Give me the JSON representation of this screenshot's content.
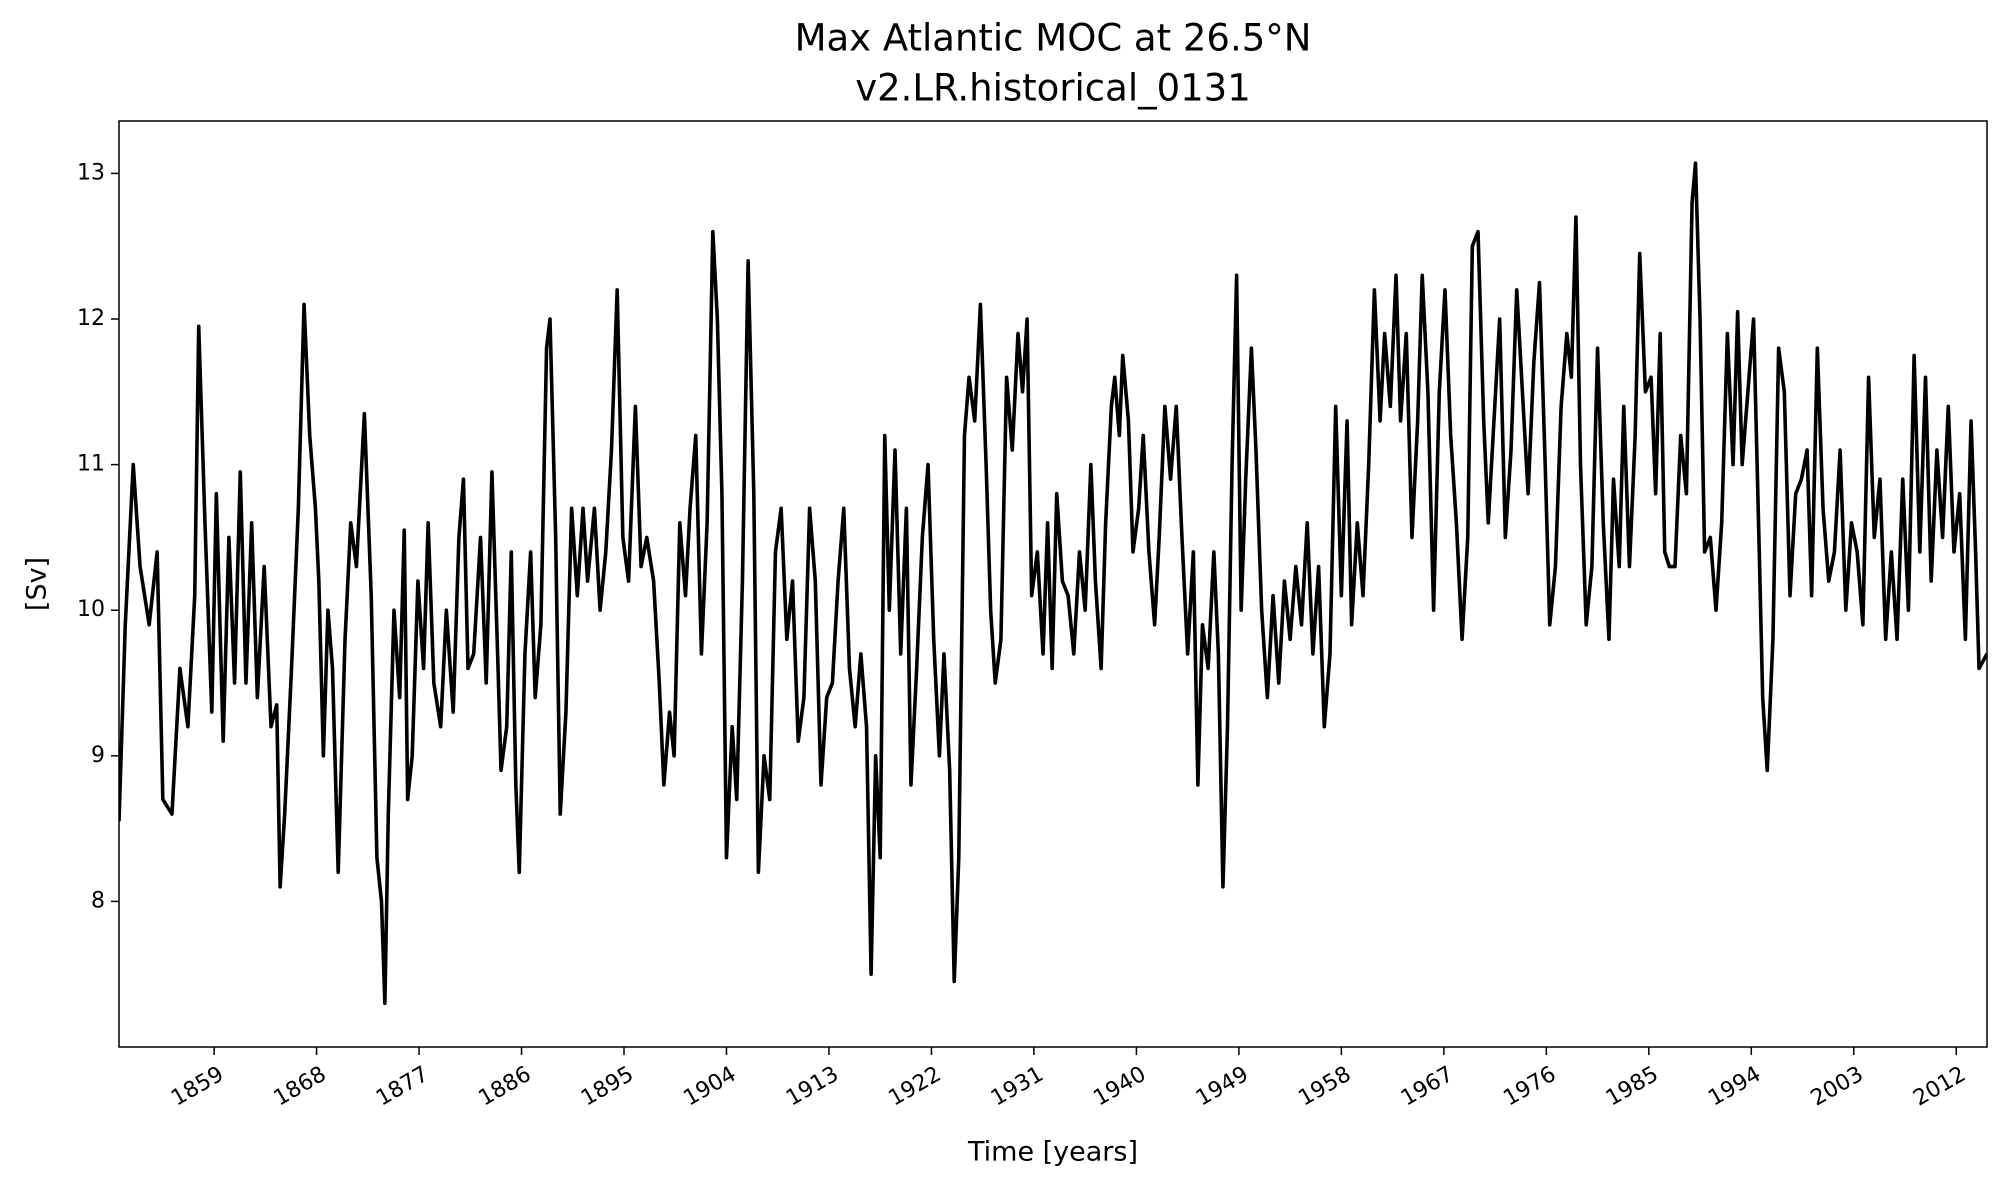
{
  "chart_data": {
    "type": "line",
    "title": "Max Atlantic MOC at 26.5°N",
    "subtitle": "v2.LR.historical_0131",
    "xlabel": "Time [years]",
    "ylabel": "[Sv]",
    "color": "#000000",
    "xlim": [
      1850.65,
      2014.7
    ],
    "ylim": [
      7.0,
      13.36
    ],
    "xticks": [
      1859,
      1868,
      1877,
      1886,
      1895,
      1904,
      1913,
      1922,
      1931,
      1940,
      1949,
      1958,
      1967,
      1976,
      1985,
      1994,
      2003,
      2012
    ],
    "yticks": [
      8,
      9,
      10,
      11,
      12,
      13
    ],
    "grid": false,
    "x": [
      1850.65,
      1851.2,
      1851.9,
      1852.5,
      1853.3,
      1854.0,
      1854.5,
      1855.3,
      1856.0,
      1856.7,
      1857.3,
      1857.65,
      1858.2,
      1858.8,
      1859.2,
      1859.8,
      1860.3,
      1860.8,
      1861.3,
      1861.8,
      1862.3,
      1862.8,
      1863.4,
      1864.0,
      1864.5,
      1864.8,
      1865.2,
      1865.8,
      1866.4,
      1866.9,
      1867.4,
      1867.9,
      1868.2,
      1868.6,
      1869.0,
      1869.4,
      1869.9,
      1870.5,
      1871.0,
      1871.5,
      1872.2,
      1872.8,
      1873.3,
      1873.7,
      1874.0,
      1874.3,
      1874.8,
      1875.3,
      1875.7,
      1876.0,
      1876.4,
      1876.9,
      1877.4,
      1877.8,
      1878.3,
      1878.9,
      1879.4,
      1880.0,
      1880.5,
      1880.9,
      1881.3,
      1881.8,
      1882.4,
      1882.9,
      1883.4,
      1883.9,
      1884.2,
      1884.7,
      1885.1,
      1885.5,
      1885.8,
      1886.3,
      1886.8,
      1887.2,
      1887.7,
      1888.2,
      1888.5,
      1889.0,
      1889.4,
      1889.9,
      1890.4,
      1890.9,
      1891.4,
      1891.8,
      1892.4,
      1892.9,
      1893.4,
      1893.9,
      1894.4,
      1894.9,
      1895.4,
      1896.0,
      1896.5,
      1897.0,
      1897.6,
      1898.1,
      1898.5,
      1899.0,
      1899.4,
      1899.9,
      1900.4,
      1900.8,
      1901.3,
      1901.8,
      1902.3,
      1902.8,
      1903.2,
      1903.6,
      1904.0,
      1904.5,
      1904.9,
      1905.4,
      1905.9,
      1906.4,
      1906.8,
      1907.3,
      1907.8,
      1908.3,
      1908.8,
      1909.3,
      1909.8,
      1910.3,
      1910.8,
      1911.3,
      1911.8,
      1912.3,
      1912.8,
      1913.3,
      1913.8,
      1914.3,
      1914.8,
      1915.3,
      1915.8,
      1916.3,
      1916.7,
      1917.1,
      1917.5,
      1917.9,
      1918.3,
      1918.8,
      1919.3,
      1919.8,
      1920.2,
      1920.7,
      1921.2,
      1921.7,
      1922.2,
      1922.7,
      1923.1,
      1923.6,
      1924.0,
      1924.4,
      1924.9,
      1925.3,
      1925.8,
      1926.3,
      1926.8,
      1927.2,
      1927.6,
      1928.1,
      1928.6,
      1929.1,
      1929.6,
      1930.0,
      1930.4,
      1930.8,
      1931.3,
      1931.8,
      1932.2,
      1932.6,
      1933.0,
      1933.5,
      1934.0,
      1934.5,
      1935.0,
      1935.5,
      1936.0,
      1936.4,
      1936.9,
      1937.3,
      1937.8,
      1938.1,
      1938.5,
      1938.8,
      1939.3,
      1939.7,
      1940.2,
      1940.6,
      1941.1,
      1941.6,
      1942.0,
      1942.5,
      1943.0,
      1943.5,
      1944.0,
      1944.5,
      1945.0,
      1945.4,
      1945.8,
      1946.3,
      1946.8,
      1947.2,
      1947.6,
      1948.0,
      1948.4,
      1948.8,
      1949.2,
      1949.6,
      1950.1,
      1950.5,
      1951.0,
      1951.5,
      1952.0,
      1952.5,
      1953.0,
      1953.5,
      1954.0,
      1954.5,
      1955.0,
      1955.5,
      1956.0,
      1956.5,
      1957.0,
      1957.5,
      1958.0,
      1958.5,
      1958.9,
      1959.4,
      1959.9,
      1960.4,
      1960.9,
      1961.4,
      1961.8,
      1962.3,
      1962.8,
      1963.2,
      1963.7,
      1964.2,
      1964.7,
      1965.1,
      1965.6,
      1966.1,
      1966.6,
      1967.1,
      1967.6,
      1968.1,
      1968.6,
      1969.1,
      1969.5,
      1970.0,
      1970.5,
      1970.9,
      1971.4,
      1971.9,
      1972.4,
      1972.9,
      1973.4,
      1973.9,
      1974.4,
      1974.9,
      1975.4,
      1975.9,
      1976.3,
      1976.8,
      1977.3,
      1977.8,
      1978.2,
      1978.6,
      1979.0,
      1979.5,
      1980.0,
      1980.5,
      1981.0,
      1981.5,
      1981.9,
      1982.4,
      1982.8,
      1983.3,
      1983.8,
      1984.2,
      1984.7,
      1985.2,
      1985.6,
      1986.0,
      1986.4,
      1986.8,
      1987.3,
      1987.8,
      1988.3,
      1988.8,
      1989.1,
      1989.5,
      1989.9,
      1990.4,
      1990.9,
      1991.4,
      1991.9,
      1992.4,
      1992.8,
      1993.2,
      1993.7,
      1994.2,
      1994.7,
      1995.0,
      1995.4,
      1995.9,
      1996.4,
      1996.9,
      1997.4,
      1997.9,
      1998.4,
      1998.9,
      1999.3,
      1999.8,
      2000.3,
      2000.8,
      2001.3,
      2001.8,
      2002.3,
      2002.8,
      2003.3,
      2003.8,
      2004.3,
      2004.8,
      2005.3,
      2005.8,
      2006.3,
      2006.8,
      2007.3,
      2007.8,
      2008.3,
      2008.8,
      2009.3,
      2009.8,
      2010.3,
      2010.8,
      2011.3,
      2011.8,
      2012.3,
      2012.8,
      2013.3,
      2013.7,
      2014.0,
      2014.7
    ],
    "values": [
      8.55,
      9.9,
      11.0,
      10.3,
      9.9,
      10.4,
      8.7,
      8.6,
      9.6,
      9.2,
      10.1,
      11.95,
      10.6,
      9.3,
      10.8,
      9.1,
      10.5,
      9.5,
      10.95,
      9.5,
      10.6,
      9.4,
      10.3,
      9.2,
      9.35,
      8.1,
      8.6,
      9.6,
      10.7,
      12.1,
      11.2,
      10.7,
      10.2,
      9.0,
      10.0,
      9.6,
      8.2,
      9.8,
      10.6,
      10.3,
      11.35,
      10.1,
      8.3,
      8.0,
      7.3,
      8.6,
      10.0,
      9.4,
      10.55,
      8.7,
      9.0,
      10.2,
      9.6,
      10.6,
      9.5,
      9.2,
      10.0,
      9.3,
      10.5,
      10.9,
      9.6,
      9.7,
      10.5,
      9.5,
      10.95,
      9.7,
      8.9,
      9.2,
      10.4,
      8.8,
      8.2,
      9.7,
      10.4,
      9.4,
      9.9,
      11.8,
      12.0,
      10.5,
      8.6,
      9.3,
      10.7,
      10.1,
      10.7,
      10.2,
      10.7,
      10.0,
      10.4,
      11.1,
      12.2,
      10.5,
      10.2,
      11.4,
      10.3,
      10.5,
      10.2,
      9.5,
      8.8,
      9.3,
      9.0,
      10.6,
      10.1,
      10.7,
      11.2,
      9.7,
      10.6,
      12.6,
      12.0,
      10.8,
      8.3,
      9.2,
      8.7,
      10.2,
      12.4,
      10.8,
      8.2,
      9.0,
      8.7,
      10.4,
      10.7,
      9.8,
      10.2,
      9.1,
      9.4,
      10.7,
      10.2,
      8.8,
      9.4,
      9.5,
      10.2,
      10.7,
      9.6,
      9.2,
      9.7,
      9.2,
      7.5,
      9.0,
      8.3,
      11.2,
      10.0,
      11.1,
      9.7,
      10.7,
      8.8,
      9.6,
      10.5,
      11.0,
      9.8,
      9.0,
      9.7,
      8.9,
      7.45,
      8.3,
      11.2,
      11.6,
      11.3,
      12.1,
      11.0,
      10.0,
      9.5,
      9.8,
      11.6,
      11.1,
      11.9,
      11.5,
      12.0,
      10.1,
      10.4,
      9.7,
      10.6,
      9.6,
      10.8,
      10.2,
      10.1,
      9.7,
      10.4,
      10.0,
      11.0,
      10.2,
      9.6,
      10.6,
      11.4,
      11.6,
      11.2,
      11.75,
      11.3,
      10.4,
      10.7,
      11.2,
      10.4,
      9.9,
      10.5,
      11.4,
      10.9,
      11.4,
      10.5,
      9.7,
      10.4,
      8.8,
      9.9,
      9.6,
      10.4,
      9.7,
      8.1,
      9.2,
      11.0,
      12.3,
      10.0,
      10.9,
      11.8,
      11.1,
      10.0,
      9.4,
      10.1,
      9.5,
      10.2,
      9.8,
      10.3,
      9.9,
      10.6,
      9.7,
      10.3,
      9.2,
      9.7,
      11.4,
      10.1,
      11.3,
      9.9,
      10.6,
      10.1,
      11.0,
      12.2,
      11.3,
      11.9,
      11.4,
      12.3,
      11.3,
      11.9,
      10.5,
      11.3,
      12.3,
      11.5,
      10.0,
      11.5,
      12.2,
      11.2,
      10.6,
      9.8,
      10.5,
      12.5,
      12.6,
      11.3,
      10.6,
      11.3,
      12.0,
      10.5,
      11.1,
      12.2,
      11.5,
      10.8,
      11.7,
      12.25,
      11.0,
      9.9,
      10.3,
      11.4,
      11.9,
      11.6,
      12.7,
      11.0,
      9.9,
      10.3,
      11.8,
      10.6,
      9.8,
      10.9,
      10.3,
      11.4,
      10.3,
      11.2,
      12.45,
      11.5,
      11.6,
      10.8,
      11.9,
      10.4,
      10.3,
      10.3,
      11.2,
      10.8,
      12.8,
      13.07,
      12.0,
      10.4,
      10.5,
      10.0,
      10.6,
      11.9,
      11.0,
      12.05,
      11.0,
      11.5,
      12.0,
      10.4,
      9.4,
      8.9,
      9.8,
      11.8,
      11.5,
      10.1,
      10.8,
      10.9,
      11.1,
      10.1,
      11.8,
      10.7,
      10.2,
      10.4,
      11.1,
      10.0,
      10.6,
      10.4,
      9.9,
      11.6,
      10.5,
      10.9,
      9.8,
      10.4,
      9.8,
      10.9,
      10.0,
      11.75,
      10.4,
      11.6,
      10.2,
      11.1,
      10.5,
      11.4,
      10.4,
      10.8,
      9.8,
      11.3,
      10.4,
      9.6,
      9.7
    ]
  }
}
